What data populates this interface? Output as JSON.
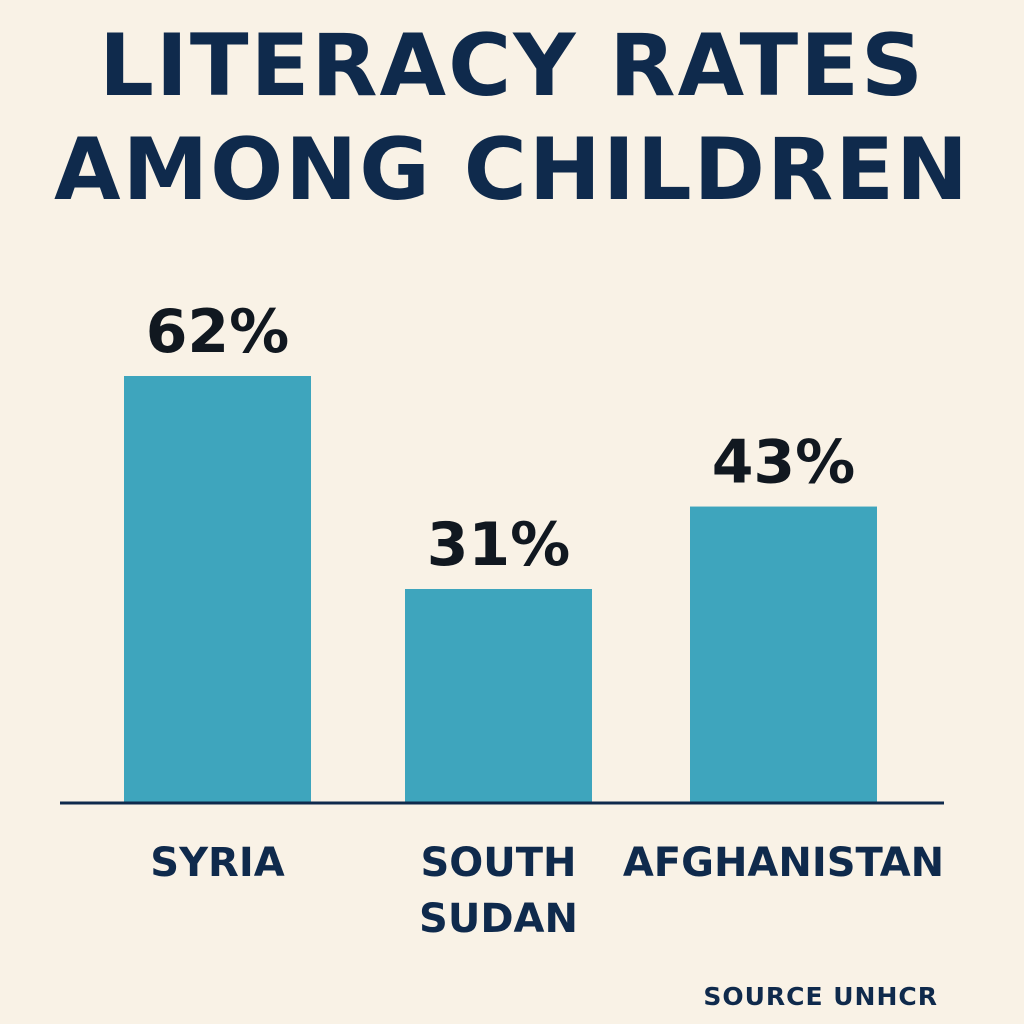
{
  "chart_data": {
    "type": "bar",
    "title_lines": [
      "LITERACY RATES",
      "AMONG CHILDREN"
    ],
    "categories": [
      [
        "SYRIA"
      ],
      [
        "SOUTH",
        "SUDAN"
      ],
      [
        "AFGHANISTAN"
      ]
    ],
    "values": [
      62,
      31,
      43
    ],
    "value_labels": [
      "62%",
      "31%",
      "43%"
    ],
    "xlabel": "",
    "ylabel": "",
    "ylim": [
      0,
      100
    ],
    "grid": false,
    "legend": "none",
    "bar_color": "#3ea5bd",
    "axis_color": "#0f2a4c",
    "text_color": "#0f2a4c",
    "value_text_color": "#111820"
  },
  "source": "SOURCE UNHCR"
}
